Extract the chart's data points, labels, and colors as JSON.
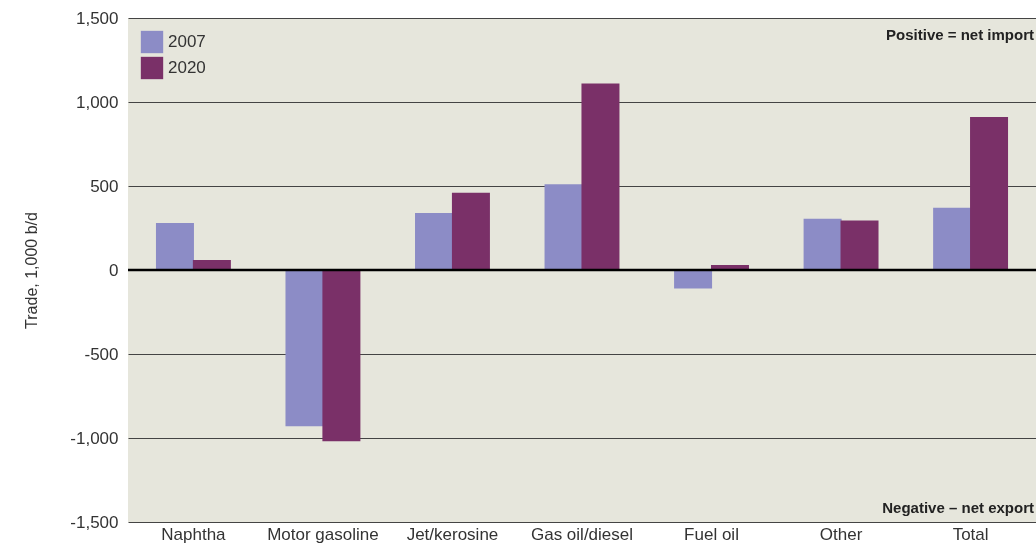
{
  "chart_data": {
    "type": "bar",
    "ylabel": "Trade, 1,000 b/d",
    "categories": [
      "Naphtha",
      "Motor gasoline",
      "Jet/kerosine",
      "Gas oil/diesel",
      "Fuel oil",
      "Other",
      "Total"
    ],
    "series": [
      {
        "name": "2007",
        "color": "#8c8cc6",
        "values": [
          280,
          -930,
          340,
          510,
          -110,
          305,
          370
        ]
      },
      {
        "name": "2020",
        "color": "#7a3068",
        "values": [
          60,
          -1020,
          460,
          1110,
          30,
          295,
          910
        ]
      }
    ],
    "ylim": [
      -1500,
      1500
    ],
    "yticks": [
      {
        "value": -1500,
        "label": "-1,500"
      },
      {
        "value": -1000,
        "label": "-1,000"
      },
      {
        "value": -500,
        "label": "-500"
      },
      0,
      {
        "value": 500,
        "label": "500"
      },
      {
        "value": 1000,
        "label": "1,000"
      },
      {
        "value": 1500,
        "label": "1,500"
      }
    ],
    "ref_lines": [
      {
        "axis": "y",
        "value": 0
      }
    ],
    "annotations": [
      "Positive = net import",
      "Negative – net export"
    ],
    "grid": "y",
    "legend": "top left"
  }
}
